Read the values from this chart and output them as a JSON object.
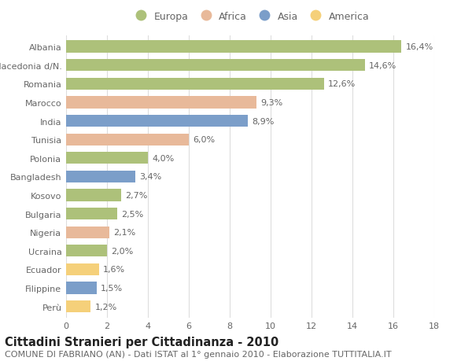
{
  "categories": [
    "Albania",
    "Macedonia d/N.",
    "Romania",
    "Marocco",
    "India",
    "Tunisia",
    "Polonia",
    "Bangladesh",
    "Kosovo",
    "Bulgaria",
    "Nigeria",
    "Ucraina",
    "Ecuador",
    "Filippine",
    "Perù"
  ],
  "values": [
    16.4,
    14.6,
    12.6,
    9.3,
    8.9,
    6.0,
    4.0,
    3.4,
    2.7,
    2.5,
    2.1,
    2.0,
    1.6,
    1.5,
    1.2
  ],
  "labels": [
    "16,4%",
    "14,6%",
    "12,6%",
    "9,3%",
    "8,9%",
    "6,0%",
    "4,0%",
    "3,4%",
    "2,7%",
    "2,5%",
    "2,1%",
    "2,0%",
    "1,6%",
    "1,5%",
    "1,2%"
  ],
  "continent": [
    "Europa",
    "Europa",
    "Europa",
    "Africa",
    "Asia",
    "Africa",
    "Europa",
    "Asia",
    "Europa",
    "Europa",
    "Africa",
    "Europa",
    "America",
    "Asia",
    "America"
  ],
  "colors": {
    "Europa": "#adc17a",
    "Africa": "#e8b99a",
    "Asia": "#7b9ec9",
    "America": "#f5d07a"
  },
  "legend_order": [
    "Europa",
    "Africa",
    "Asia",
    "America"
  ],
  "title": "Cittadini Stranieri per Cittadinanza - 2010",
  "subtitle": "COMUNE DI FABRIANO (AN) - Dati ISTAT al 1° gennaio 2010 - Elaborazione TUTTITALIA.IT",
  "xlim": [
    0,
    18
  ],
  "xticks": [
    0,
    2,
    4,
    6,
    8,
    10,
    12,
    14,
    16,
    18
  ],
  "background_color": "#ffffff",
  "grid_color": "#dddddd",
  "bar_height": 0.65,
  "title_fontsize": 10.5,
  "subtitle_fontsize": 8,
  "label_fontsize": 8,
  "tick_fontsize": 8,
  "legend_fontsize": 9
}
